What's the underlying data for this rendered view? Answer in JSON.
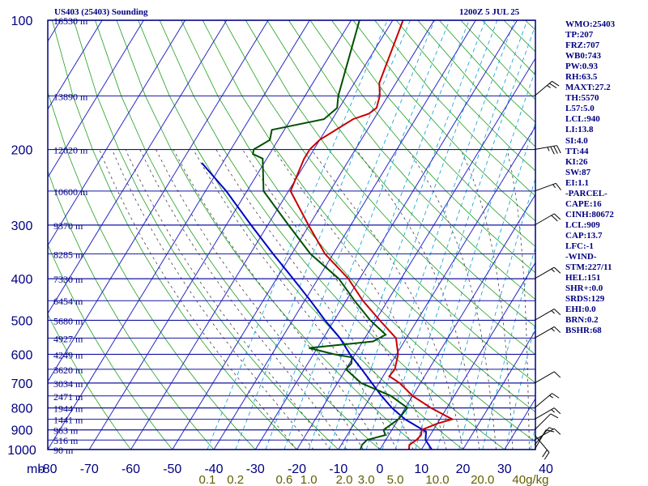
{
  "header": {
    "title": "US403 (25403) Sounding",
    "time": "1200Z  5 JUL 25"
  },
  "indices": [
    "WMO:25403",
    "TP:207",
    "FRZ:707",
    "WB0:743",
    "PW:0.93",
    "RH:63.5",
    "MAXT:27.2",
    "TH:5570",
    "L57:5.0",
    "LCL:940",
    "LI:13.8",
    "SI:4.0",
    "TT:44",
    "KI:26",
    "SW:87",
    "EI:1.1",
    "-PARCEL-",
    "CAPE:16",
    "CINH:80672",
    "LCL:909",
    "CAP:13.7",
    "LFC:-1",
    "-WIND-",
    "STM:227/11",
    "HEL:151",
    "SHR+:0.0",
    "SRDS:129",
    "EHI:0.0",
    "BRN:0.2",
    "BSHR:68"
  ],
  "colors": {
    "frame": "#000080",
    "isobar": "#1414a0",
    "isotherm": "#2828c8",
    "dry_adiabat": "#1ea01e",
    "moist_adiabat": "#404040",
    "mixing_ratio": "#00a0d0",
    "temperature": "#c80000",
    "dewpoint": "#005000",
    "parcel": "#0000c8",
    "mixing_label": "#606000",
    "wind_barb": "#000000"
  },
  "chart_data": {
    "type": "skew-t",
    "pressure_unit_label": "mb",
    "pressure_ticks": [
      100,
      200,
      300,
      400,
      500,
      600,
      700,
      800,
      900,
      1000
    ],
    "temperature_ticks": [
      -80,
      -70,
      -60,
      -50,
      -40,
      -30,
      -20,
      -10,
      0,
      10,
      20,
      30,
      40
    ],
    "height_labels": [
      {
        "p": 100,
        "label": "16530 m"
      },
      {
        "p": 150,
        "label": "13890 m"
      },
      {
        "p": 200,
        "label": "12020 m"
      },
      {
        "p": 250,
        "label": "10600 m"
      },
      {
        "p": 300,
        "label": "9370 m"
      },
      {
        "p": 350,
        "label": "8285 m"
      },
      {
        "p": 400,
        "label": "7330 m"
      },
      {
        "p": 450,
        "label": "6454 m"
      },
      {
        "p": 500,
        "label": "5680 m"
      },
      {
        "p": 550,
        "label": "4927 m"
      },
      {
        "p": 600,
        "label": "4249 m"
      },
      {
        "p": 650,
        "label": "3620 m"
      },
      {
        "p": 700,
        "label": "3034 m"
      },
      {
        "p": 750,
        "label": "2471 m"
      },
      {
        "p": 800,
        "label": "1944 m"
      },
      {
        "p": 850,
        "label": "1441 m"
      },
      {
        "p": 900,
        "label": "963 m"
      },
      {
        "p": 950,
        "label": "516 m"
      },
      {
        "p": 1000,
        "label": "90 m"
      }
    ],
    "mixing_ratio_labels": [
      {
        "w": 0.1,
        "label": "0.1"
      },
      {
        "w": 0.2,
        "label": "0.2"
      },
      {
        "w": 0.6,
        "label": "0.6"
      },
      {
        "w": 1.0,
        "label": "1.0"
      },
      {
        "w": 2.0,
        "label": "2.0"
      },
      {
        "w": 3.0,
        "label": "3.0"
      },
      {
        "w": 5.0,
        "label": "5.0"
      },
      {
        "w": 10.0,
        "label": "10.0"
      },
      {
        "w": 20.0,
        "label": "20.0"
      },
      {
        "w": 40.0,
        "label": "40g/kg"
      }
    ],
    "temperature_profile": [
      [
        1000,
        7.0
      ],
      [
        975,
        6.4
      ],
      [
        950,
        7.4
      ],
      [
        925,
        7.8
      ],
      [
        900,
        7.2
      ],
      [
        870,
        10.0
      ],
      [
        850,
        13.0
      ],
      [
        800,
        6.2
      ],
      [
        750,
        0.0
      ],
      [
        700,
        -5.0
      ],
      [
        675,
        -8.5
      ],
      [
        650,
        -8.2
      ],
      [
        600,
        -9.6
      ],
      [
        550,
        -12.5
      ],
      [
        500,
        -19.0
      ],
      [
        450,
        -26.0
      ],
      [
        400,
        -32.7
      ],
      [
        350,
        -42.0
      ],
      [
        300,
        -50.2
      ],
      [
        250,
        -59.5
      ],
      [
        210,
        -61.0
      ],
      [
        200,
        -61.0
      ],
      [
        190,
        -60.0
      ],
      [
        170,
        -55.0
      ],
      [
        165,
        -52.0
      ],
      [
        160,
        -51.0
      ],
      [
        150,
        -52.0
      ],
      [
        140,
        -54.0
      ],
      [
        100,
        -57.5
      ]
    ],
    "dewpoint_profile": [
      [
        1000,
        -4.7
      ],
      [
        975,
        -5.0
      ],
      [
        950,
        -4.5
      ],
      [
        925,
        -0.8
      ],
      [
        900,
        -2.0
      ],
      [
        850,
        0.0
      ],
      [
        800,
        0.5
      ],
      [
        750,
        -5.2
      ],
      [
        700,
        -14.3
      ],
      [
        650,
        -20.0
      ],
      [
        630,
        -19.5
      ],
      [
        610,
        -20.3
      ],
      [
        600,
        -25.0
      ],
      [
        580,
        -32.0
      ],
      [
        560,
        -17.5
      ],
      [
        540,
        -15.5
      ],
      [
        500,
        -21.3
      ],
      [
        450,
        -28.0
      ],
      [
        400,
        -35.0
      ],
      [
        350,
        -45.5
      ],
      [
        300,
        -55.0
      ],
      [
        250,
        -66.0
      ],
      [
        210,
        -71.0
      ],
      [
        205,
        -74.0
      ],
      [
        200,
        -74.5
      ],
      [
        190,
        -72.0
      ],
      [
        180,
        -73.0
      ],
      [
        170,
        -62.0
      ],
      [
        160,
        -60.5
      ],
      [
        150,
        -62.0
      ],
      [
        100,
        -68.0
      ]
    ],
    "parcel_profile": [
      [
        1000,
        12.5
      ],
      [
        950,
        9.6
      ],
      [
        909,
        8.5
      ],
      [
        850,
        1.6
      ],
      [
        800,
        -3.2
      ],
      [
        750,
        -7.5
      ],
      [
        700,
        -11.7
      ],
      [
        650,
        -16.2
      ],
      [
        600,
        -21.2
      ],
      [
        550,
        -26.0
      ],
      [
        500,
        -32.2
      ],
      [
        450,
        -38.6
      ],
      [
        400,
        -46.0
      ],
      [
        350,
        -54.5
      ],
      [
        300,
        -64.0
      ],
      [
        250,
        -75.0
      ],
      [
        215,
        -85.0
      ]
    ],
    "wind_barbs": [
      {
        "p": 1000,
        "dir": 30,
        "spd": 10
      },
      {
        "p": 975,
        "dir": 40,
        "spd": 5
      },
      {
        "p": 950,
        "dir": 60,
        "spd": 10
      },
      {
        "p": 925,
        "dir": 140,
        "spd": 20
      },
      {
        "p": 900,
        "dir": 45,
        "spd": 10
      },
      {
        "p": 850,
        "dir": 60,
        "spd": 15
      },
      {
        "p": 800,
        "dir": 50,
        "spd": 15
      },
      {
        "p": 700,
        "dir": 60,
        "spd": 10
      },
      {
        "p": 550,
        "dir": 60,
        "spd": 15
      },
      {
        "p": 500,
        "dir": 60,
        "spd": 15
      },
      {
        "p": 400,
        "dir": 60,
        "spd": 15
      },
      {
        "p": 300,
        "dir": 60,
        "spd": 20
      },
      {
        "p": 250,
        "dir": 70,
        "spd": 15
      },
      {
        "p": 200,
        "dir": 80,
        "spd": 35
      },
      {
        "p": 150,
        "dir": 50,
        "spd": 25
      }
    ]
  }
}
